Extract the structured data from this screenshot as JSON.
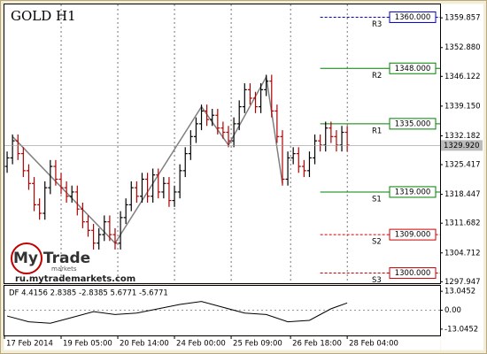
{
  "chart_data": {
    "type": "ohlc",
    "title": "GOLD H1",
    "watermark": {
      "brand": "My Trade",
      "sub": "markets",
      "url": "ru.mytrademarkets.com"
    },
    "open": [
      1325,
      1327,
      1331,
      1328,
      1324,
      1321,
      1316,
      1314,
      1320,
      1325,
      1322,
      1320,
      1318,
      1319,
      1315,
      1312,
      1310,
      1307,
      1309,
      1312,
      1309,
      1307,
      1313,
      1316,
      1320,
      1318,
      1322,
      1318,
      1323,
      1319,
      1321,
      1317,
      1319,
      1324,
      1328,
      1332,
      1335,
      1338,
      1336,
      1337,
      1334,
      1333,
      1331,
      1335,
      1339,
      1343,
      1341,
      1339,
      1343,
      1345,
      1338,
      1332,
      1322,
      1327,
      1328,
      1325,
      1324,
      1327,
      1331,
      1330,
      1334,
      1332,
      1330,
      1333
    ],
    "high": [
      1328.5,
      1332.5,
      1332.5,
      1329.5,
      1325.5,
      1322.5,
      1317.5,
      1321.5,
      1326.5,
      1326.5,
      1323.5,
      1321.5,
      1320.5,
      1320.5,
      1316.5,
      1313.5,
      1311.5,
      1310.5,
      1313.5,
      1313.5,
      1310.5,
      1314.5,
      1317.5,
      1321.5,
      1321.5,
      1323.5,
      1323.5,
      1324.5,
      1324.5,
      1322.5,
      1322.5,
      1320.5,
      1325.5,
      1329.5,
      1333.5,
      1336.5,
      1339.5,
      1339.5,
      1338.5,
      1338.5,
      1335.5,
      1334.5,
      1336.5,
      1340.5,
      1344.5,
      1344.5,
      1342.5,
      1344.5,
      1346.5,
      1346.5,
      1339.5,
      1333.5,
      1328.5,
      1329.5,
      1329.5,
      1326.5,
      1328.5,
      1332.5,
      1332.5,
      1335.5,
      1335.5,
      1333.5,
      1334.5,
      1334.5
    ],
    "low": [
      1323.5,
      1325.5,
      1326.5,
      1322.5,
      1319.5,
      1314.5,
      1312.5,
      1312.5,
      1318.5,
      1320.5,
      1318.5,
      1316.5,
      1316.5,
      1313.5,
      1310.5,
      1308.5,
      1305.5,
      1305.5,
      1307.5,
      1307.5,
      1305.5,
      1305.5,
      1311.5,
      1314.5,
      1316.5,
      1316.5,
      1316.5,
      1316.5,
      1317.5,
      1317.5,
      1315.5,
      1315.5,
      1317.5,
      1322.5,
      1326.5,
      1330.5,
      1333.5,
      1334.5,
      1334.5,
      1332.5,
      1331.5,
      1329.5,
      1329.5,
      1333.5,
      1337.5,
      1339.5,
      1337.5,
      1337.5,
      1341.5,
      1336.5,
      1330.5,
      1320.5,
      1320.5,
      1325.5,
      1323.5,
      1322.5,
      1322.5,
      1325.5,
      1328.5,
      1328.5,
      1330.5,
      1328.5,
      1328.5,
      1328.5
    ],
    "close": [
      1327,
      1331,
      1328,
      1324,
      1321,
      1316,
      1314,
      1320,
      1325,
      1322,
      1320,
      1318,
      1319,
      1315,
      1312,
      1310,
      1307,
      1309,
      1312,
      1309,
      1307,
      1313,
      1316,
      1320,
      1318,
      1322,
      1318,
      1323,
      1319,
      1321,
      1317,
      1319,
      1324,
      1328,
      1332,
      1335,
      1338,
      1336,
      1337,
      1334,
      1333,
      1331,
      1335,
      1339,
      1343,
      1341,
      1339,
      1343,
      1345,
      1338,
      1332,
      1322,
      1327,
      1328,
      1325,
      1324,
      1327,
      1331,
      1330,
      1334,
      1332,
      1330,
      1333,
      1330
    ],
    "up_color": "#000000",
    "down_color": "#b00000",
    "zigzag": {
      "x": [
        1,
        20,
        36,
        41,
        48,
        51
      ],
      "values": [
        1332,
        1307,
        1339,
        1330,
        1346,
        1321
      ],
      "color": "#808080"
    },
    "xlim": [
      -0.5,
      80.2
    ],
    "xticks": [
      {
        "value": -0.5,
        "label": "17 Feb 2014"
      },
      {
        "value": 10,
        "label": "19 Feb 05:00"
      },
      {
        "value": 20.5,
        "label": "20 Feb 14:00"
      },
      {
        "value": 31,
        "label": "24 Feb 00:00"
      },
      {
        "value": 41.5,
        "label": "25 Feb 09:00"
      },
      {
        "value": 52.5,
        "label": "26 Feb 18:00"
      },
      {
        "value": 63,
        "label": "28 Feb 04:00"
      }
    ],
    "ylim": [
      1297.5,
      1363.0
    ],
    "yticks": [
      {
        "value": 1359.857,
        "label": "1359.857"
      },
      {
        "value": 1352.88,
        "label": "1352.880"
      },
      {
        "value": 1346.122,
        "label": "1346.122"
      },
      {
        "value": 1339.15,
        "label": "1339.150"
      },
      {
        "value": 1332.182,
        "label": "1332.182"
      },
      {
        "value": 1325.417,
        "label": "1325.417"
      },
      {
        "value": 1318.447,
        "label": "1318.447"
      },
      {
        "value": 1311.682,
        "label": "1311.682"
      },
      {
        "value": 1304.712,
        "label": "1304.712"
      },
      {
        "value": 1297.947,
        "label": "1297.947"
      }
    ],
    "levels": [
      {
        "name": "R3",
        "value": 1360,
        "label": "1360.000",
        "color": "#0000cc",
        "dashed": true
      },
      {
        "name": "R2",
        "value": 1348,
        "label": "1348.000",
        "color": "#008000",
        "dashed": false
      },
      {
        "name": "R1",
        "value": 1335,
        "label": "1335.000",
        "color": "#008000",
        "dashed": false
      },
      {
        "name": "S1",
        "value": 1319,
        "label": "1319.000",
        "color": "#008000",
        "dashed": false
      },
      {
        "name": "S2",
        "value": 1309,
        "label": "1309.000",
        "color": "#cc0000",
        "dashed": true
      },
      {
        "name": "S3",
        "value": 1300,
        "label": "1300.000",
        "color": "#cc0000",
        "dashed": true
      }
    ],
    "current_price": {
      "value": 1329.92,
      "label": "1329.920"
    },
    "indicator": {
      "label": "DF 4.4156 2.8385 -2.8385 5.6771 -5.6771",
      "x": [
        0,
        4,
        8,
        12,
        16,
        20,
        24,
        28,
        32,
        36,
        40,
        44,
        48,
        52,
        56,
        60,
        63
      ],
      "values": [
        -4,
        -8,
        -9,
        -5,
        -1,
        -3,
        -2,
        1,
        4,
        6,
        2,
        -2,
        -3,
        -8,
        -7,
        1,
        5
      ],
      "ylim": [
        -18,
        16.8
      ],
      "yticks": [
        {
          "value": 13.0452,
          "label": "13.0452"
        },
        {
          "value": 0,
          "label": "0.00"
        },
        {
          "value": -13.0452,
          "label": "-13.0452"
        }
      ]
    }
  }
}
